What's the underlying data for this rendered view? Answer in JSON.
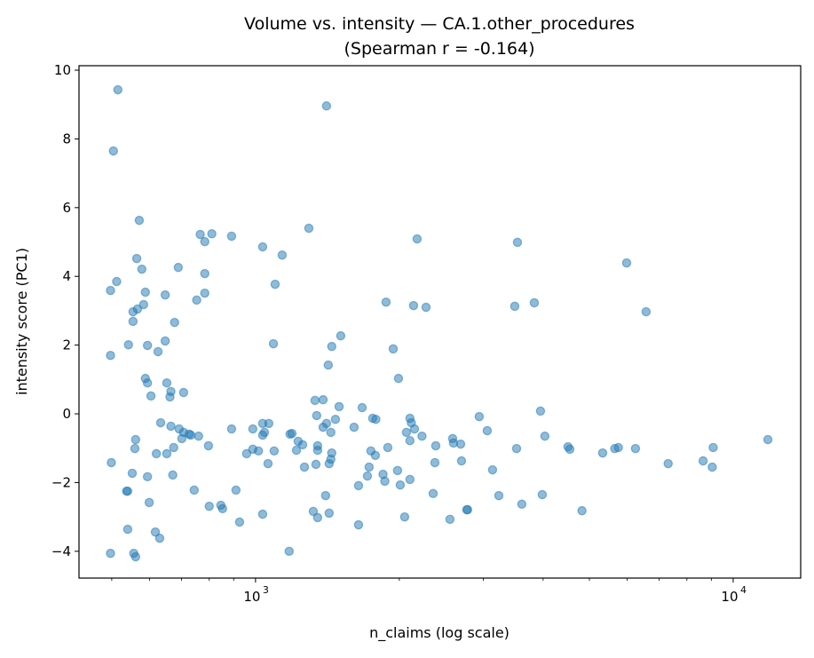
{
  "chart_data": {
    "type": "scatter",
    "title": "Volume vs. intensity — CA.1.other_procedures",
    "subtitle": "(Spearman r = -0.164)",
    "xlabel": "n_claims (log scale)",
    "ylabel": "intensity score (PC1)",
    "xscale": "log",
    "xlim": [
      427,
      13846
    ],
    "ylim": [
      -4.78,
      10.13
    ],
    "xticks": [
      {
        "value": 1000,
        "label": "10",
        "exp": "3"
      },
      {
        "value": 10000,
        "label": "10",
        "exp": "4"
      }
    ],
    "xminor": [
      500,
      600,
      700,
      800,
      900,
      2000,
      3000,
      4000,
      5000,
      6000,
      7000,
      8000,
      9000
    ],
    "yticks": [
      -4,
      -2,
      0,
      2,
      4,
      6,
      8,
      10
    ],
    "ytick_labels": [
      "−4",
      "−2",
      "0",
      "2",
      "4",
      "6",
      "8",
      "10"
    ],
    "grid": false,
    "marker_color": "#1f77b4",
    "marker_alpha": 0.5,
    "points": [
      [
        515,
        9.43
      ],
      [
        504,
        7.65
      ],
      [
        571,
        5.63
      ],
      [
        497,
        3.59
      ],
      [
        512,
        3.85
      ],
      [
        564,
        4.52
      ],
      [
        578,
        4.21
      ],
      [
        588,
        3.54
      ],
      [
        583,
        3.18
      ],
      [
        566,
        3.05
      ],
      [
        554,
        2.97
      ],
      [
        554,
        2.69
      ],
      [
        542,
        2.01
      ],
      [
        497,
        1.7
      ],
      [
        594,
        1.99
      ],
      [
        647,
        3.46
      ],
      [
        689,
        4.26
      ],
      [
        677,
        2.66
      ],
      [
        647,
        2.12
      ],
      [
        625,
        1.81
      ],
      [
        766,
        5.22
      ],
      [
        810,
        5.24
      ],
      [
        891,
        5.17
      ],
      [
        783,
        5.01
      ],
      [
        783,
        3.51
      ],
      [
        753,
        3.31
      ],
      [
        783,
        4.08
      ],
      [
        1035,
        4.86
      ],
      [
        1137,
        4.62
      ],
      [
        1099,
        3.77
      ],
      [
        1293,
        5.4
      ],
      [
        1408,
        8.96
      ],
      [
        2179,
        5.09
      ],
      [
        3535,
        4.99
      ],
      [
        5983,
        4.39
      ],
      [
        6572,
        2.97
      ],
      [
        3834,
        3.23
      ],
      [
        3489,
        3.13
      ],
      [
        2142,
        3.15
      ],
      [
        2275,
        3.1
      ],
      [
        1876,
        3.25
      ],
      [
        1090,
        2.04
      ],
      [
        1508,
        2.27
      ],
      [
        1444,
        1.96
      ],
      [
        1420,
        1.42
      ],
      [
        1942,
        1.89
      ],
      [
        1992,
        1.03
      ],
      [
        588,
        1.03
      ],
      [
        594,
        0.9
      ],
      [
        652,
        0.9
      ],
      [
        665,
        0.65
      ],
      [
        662,
        0.49
      ],
      [
        707,
        0.62
      ],
      [
        604,
        0.52
      ],
      [
        633,
        -0.26
      ],
      [
        665,
        -0.36
      ],
      [
        692,
        -0.44
      ],
      [
        707,
        -0.54
      ],
      [
        726,
        -0.59
      ],
      [
        732,
        -0.62
      ],
      [
        760,
        -0.65
      ],
      [
        701,
        -0.72
      ],
      [
        561,
        -0.75
      ],
      [
        559,
        -1.01
      ],
      [
        674,
        -0.98
      ],
      [
        620,
        -1.16
      ],
      [
        652,
        -1.16
      ],
      [
        797,
        -0.93
      ],
      [
        891,
        -0.44
      ],
      [
        987,
        -0.44
      ],
      [
        1035,
        -0.28
      ],
      [
        1066,
        -0.28
      ],
      [
        1044,
        -0.54
      ],
      [
        1035,
        -0.62
      ],
      [
        1181,
        -0.59
      ],
      [
        1192,
        -0.57
      ],
      [
        1228,
        -0.8
      ],
      [
        1255,
        -0.9
      ],
      [
        1218,
        -1.06
      ],
      [
        958,
        -1.16
      ],
      [
        987,
        -1.03
      ],
      [
        1014,
        -1.08
      ],
      [
        1094,
        -1.08
      ],
      [
        1062,
        -1.45
      ],
      [
        1266,
        -1.55
      ],
      [
        1332,
        0.39
      ],
      [
        1385,
        0.41
      ],
      [
        1496,
        0.21
      ],
      [
        1343,
        -0.05
      ],
      [
        1470,
        -0.16
      ],
      [
        1408,
        -0.28
      ],
      [
        1385,
        -0.39
      ],
      [
        1438,
        -0.54
      ],
      [
        1349,
        -0.93
      ],
      [
        1349,
        -1.06
      ],
      [
        1444,
        -1.14
      ],
      [
        1438,
        -1.32
      ],
      [
        1426,
        -1.45
      ],
      [
        1338,
        -1.47
      ],
      [
        499,
        -1.42
      ],
      [
        552,
        -1.73
      ],
      [
        594,
        -1.83
      ],
      [
        671,
        -1.78
      ],
      [
        537,
        -2.25
      ],
      [
        540,
        -2.25
      ],
      [
        599,
        -2.58
      ],
      [
        744,
        -2.22
      ],
      [
        910,
        -2.22
      ],
      [
        800,
        -2.69
      ],
      [
        846,
        -2.66
      ],
      [
        853,
        -2.76
      ],
      [
        926,
        -3.15
      ],
      [
        1035,
        -2.92
      ],
      [
        1402,
        -2.38
      ],
      [
        1321,
        -2.84
      ],
      [
        1349,
        -3.02
      ],
      [
        1426,
        -2.89
      ],
      [
        540,
        -3.36
      ],
      [
        617,
        -3.44
      ],
      [
        630,
        -3.62
      ],
      [
        1176,
        -4.0
      ],
      [
        497,
        -4.06
      ],
      [
        556,
        -4.06
      ],
      [
        561,
        -4.16
      ],
      [
        1672,
        0.18
      ],
      [
        1759,
        -0.13
      ],
      [
        1786,
        -0.16
      ],
      [
        1608,
        -0.39
      ],
      [
        2105,
        -0.13
      ],
      [
        2119,
        -0.26
      ],
      [
        2152,
        -0.44
      ],
      [
        2231,
        -0.65
      ],
      [
        2070,
        -0.54
      ],
      [
        2105,
        -0.78
      ],
      [
        2384,
        -0.93
      ],
      [
        2586,
        -0.72
      ],
      [
        2597,
        -0.85
      ],
      [
        2688,
        -0.88
      ],
      [
        2940,
        -0.08
      ],
      [
        3056,
        -0.49
      ],
      [
        3950,
        0.08
      ],
      [
        4034,
        -0.65
      ],
      [
        3520,
        -1.01
      ],
      [
        4510,
        -0.96
      ],
      [
        4549,
        -1.03
      ],
      [
        5330,
        -1.14
      ],
      [
        1744,
        -1.08
      ],
      [
        1782,
        -1.21
      ],
      [
        1892,
        -0.98
      ],
      [
        1729,
        -1.55
      ],
      [
        1715,
        -1.81
      ],
      [
        1849,
        -1.76
      ],
      [
        1865,
        -1.96
      ],
      [
        1983,
        -1.65
      ],
      [
        2009,
        -2.07
      ],
      [
        2105,
        -1.91
      ],
      [
        2374,
        -1.42
      ],
      [
        2699,
        -1.37
      ],
      [
        3135,
        -1.63
      ],
      [
        1643,
        -2.09
      ],
      [
        2354,
        -2.32
      ],
      [
        3231,
        -2.38
      ],
      [
        3610,
        -2.63
      ],
      [
        3984,
        -2.35
      ],
      [
        2768,
        -2.79
      ],
      [
        2780,
        -2.79
      ],
      [
        4825,
        -2.82
      ],
      [
        2052,
        -3.0
      ],
      [
        2553,
        -3.07
      ],
      [
        1643,
        -3.23
      ],
      [
        5650,
        -1.01
      ],
      [
        5750,
        -0.98
      ],
      [
        6244,
        -1.01
      ],
      [
        7310,
        -1.45
      ],
      [
        8650,
        -1.37
      ],
      [
        9040,
        -1.55
      ],
      [
        9080,
        -0.98
      ],
      [
        11820,
        -0.75
      ]
    ]
  }
}
